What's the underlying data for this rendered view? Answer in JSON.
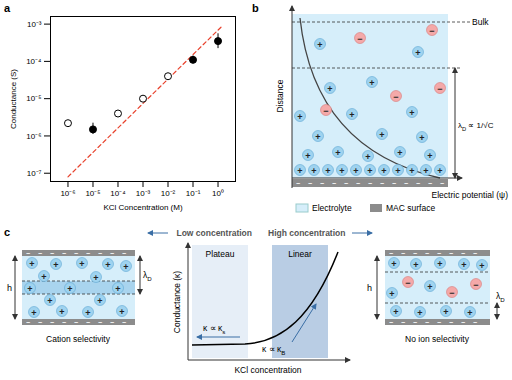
{
  "panel_labels": [
    "a",
    "b",
    "c"
  ],
  "ion_symbols": {
    "cation": "+",
    "anion": "−"
  },
  "chart_data": {
    "type": "scatter",
    "x_label": "KCl Concentration (M)",
    "y_label": "Conductance (S)",
    "log": true,
    "xlim": [
      2e-07,
      5
    ],
    "ylim": [
      6e-08,
      0.0016
    ],
    "xticks": [
      {
        "value": 1e-06,
        "label": "10⁻⁶"
      },
      {
        "value": 1e-05,
        "label": "10⁻⁵"
      },
      {
        "value": 0.0001,
        "label": "10⁻⁴"
      },
      {
        "value": 0.001,
        "label": "10⁻³"
      },
      {
        "value": 0.01,
        "label": "10⁻²"
      },
      {
        "value": 0.1,
        "label": "10⁻¹"
      },
      {
        "value": 1,
        "label": "10⁰"
      }
    ],
    "yticks": [
      {
        "value": 1e-07,
        "label": "10⁻⁷"
      },
      {
        "value": 1e-06,
        "label": "10⁻⁶"
      },
      {
        "value": 1e-05,
        "label": "10⁻⁵"
      },
      {
        "value": 0.0001,
        "label": "10⁻⁴"
      },
      {
        "value": 0.001,
        "label": "10⁻³"
      }
    ],
    "series": [
      {
        "type": "line",
        "line_style": "dashed",
        "color": "#e8412c",
        "x": [
          1e-06,
          1.5
        ],
        "values": [
          8e-08,
          0.0009
        ]
      },
      {
        "type": "scatter",
        "marker": "circle_open",
        "color": "#000000",
        "x": [
          1e-06,
          0.0001,
          0.001,
          0.01
        ],
        "values": [
          2.2e-06,
          4e-06,
          1e-05,
          4e-05
        ]
      },
      {
        "type": "scatter",
        "marker": "circle",
        "color": "#000000",
        "x": [
          1e-05,
          0.1,
          1
        ],
        "values": [
          1.5e-06,
          0.00011,
          0.00035
        ],
        "error_low": [
          1.1e-06,
          9e-05,
          0.00022
        ],
        "error_high": [
          2.2e-06,
          0.00014,
          0.00055
        ]
      }
    ]
  },
  "diagram_b": {
    "top_label": "Bulk",
    "y_label": "Distance",
    "x_label": "Electric potential (ψ)",
    "debye_label": [
      {
        "text": "λ"
      },
      {
        "text": "D",
        "sub": true
      },
      {
        "text": " ∝ 1/√C"
      }
    ],
    "legend_items": [
      "Electrolyte",
      "MAC surface"
    ]
  },
  "diagram_c": {
    "left_heading": "Low concentration",
    "right_heading": "High concentration",
    "regions": [
      "Plateau",
      "Linear"
    ],
    "y_label": "Conductance (κ)",
    "x_label": "KCl concentration",
    "low_relation": [
      {
        "text": "κ ∝ κ"
      },
      {
        "text": "s",
        "sub": true
      }
    ],
    "high_relation": [
      {
        "text": "κ ∝ κ"
      },
      {
        "text": "B",
        "sub": true
      }
    ],
    "left_caption": "Cation selectivity",
    "right_caption": "No ion selectivity",
    "height_label": "h",
    "debye_label": [
      {
        "text": "λ"
      },
      {
        "text": "D",
        "sub": true
      }
    ]
  }
}
